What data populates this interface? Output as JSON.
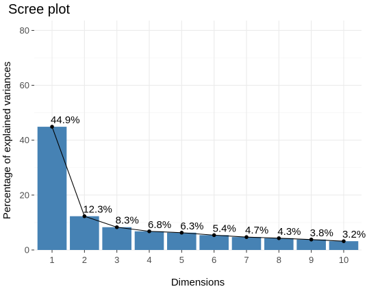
{
  "chart_data": {
    "type": "bar",
    "title": "Scree plot",
    "xlabel": "Dimensions",
    "ylabel": "Percentage of explained variances",
    "categories": [
      "1",
      "2",
      "3",
      "4",
      "5",
      "6",
      "7",
      "8",
      "9",
      "10"
    ],
    "values": [
      44.9,
      12.3,
      8.3,
      6.8,
      6.3,
      5.4,
      4.7,
      4.3,
      3.8,
      3.2
    ],
    "value_labels": [
      "44.9%",
      "12.3%",
      "8.3%",
      "6.8%",
      "6.3%",
      "5.4%",
      "4.7%",
      "4.3%",
      "3.8%",
      "3.2%"
    ],
    "ylim": [
      0,
      80
    ],
    "yticks": [
      0,
      20,
      40,
      60,
      80
    ],
    "grid": true,
    "legend": "none",
    "bar_color": "#4682b4",
    "line_color": "#000000",
    "overlay": "line-with-points"
  }
}
